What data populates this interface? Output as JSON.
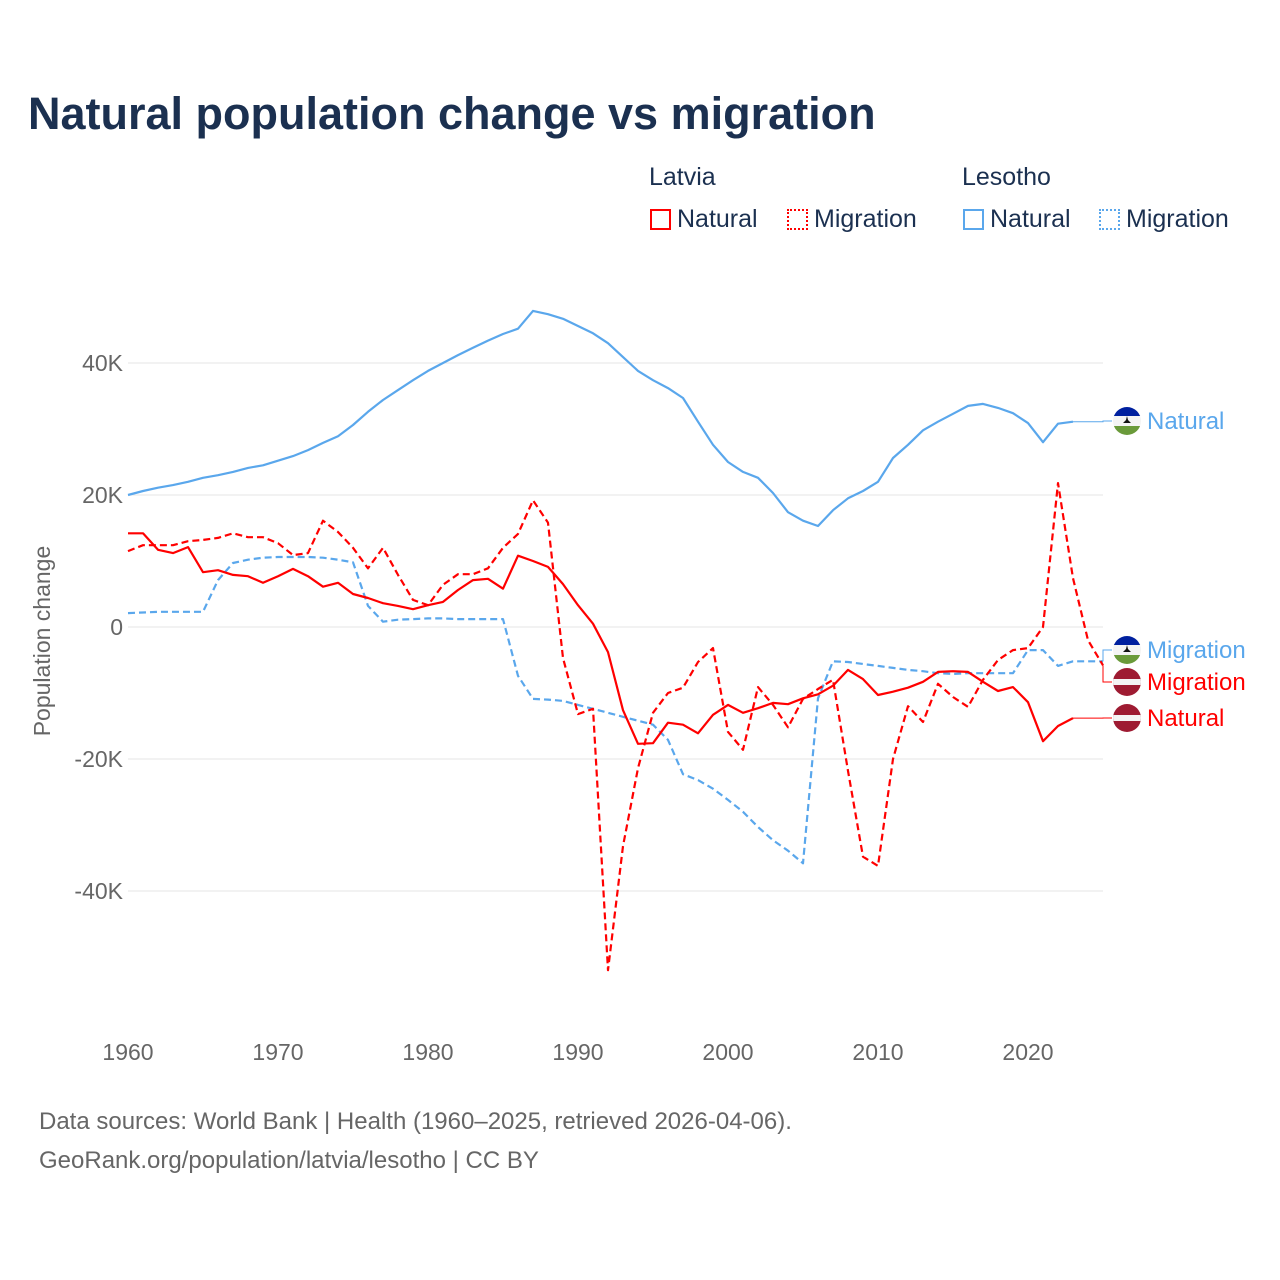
{
  "title": "Natural population change vs migration",
  "legend": {
    "groups": [
      {
        "name": "Latvia",
        "items": [
          {
            "label": "Natural",
            "style": "solid"
          },
          {
            "label": "Migration",
            "style": "dotted"
          }
        ],
        "color": "#ff0000"
      },
      {
        "name": "Lesotho",
        "items": [
          {
            "label": "Natural",
            "style": "solid"
          },
          {
            "label": "Migration",
            "style": "dotted"
          }
        ],
        "color": "#5aa7ec"
      }
    ]
  },
  "footer": {
    "line1": "Data sources: World Bank | Health (1960–2025, retrieved 2026-04-06).",
    "line2": "GeoRank.org/population/latvia/lesotho | CC BY"
  },
  "chart_data": {
    "type": "line",
    "title": "Natural population change vs migration",
    "xlabel": "",
    "ylabel": "Population change",
    "xlim": [
      1960,
      2025
    ],
    "ylim": [
      -55,
      50
    ],
    "x_ticks": [
      1960,
      1970,
      1980,
      1990,
      2000,
      2010,
      2020
    ],
    "x_tick_labels": [
      "1960",
      "1970",
      "1980",
      "1990",
      "2000",
      "2010",
      "2020"
    ],
    "y_ticks": [
      40,
      20,
      0,
      -20,
      -40
    ],
    "y_tick_labels": [
      "40K",
      "20K",
      "0",
      "-20K",
      "-40K"
    ],
    "units": "thousands",
    "grid": true,
    "series": [
      {
        "name": "Lesotho Natural",
        "country": "Lesotho",
        "label": "Natural",
        "color": "#5aa7ec",
        "dash": false,
        "start": 1960,
        "values": [
          20.0,
          20.6,
          21.1,
          21.5,
          22.0,
          22.6,
          23.0,
          23.5,
          24.1,
          24.5,
          25.2,
          25.9,
          26.8,
          27.9,
          28.9,
          30.6,
          32.6,
          34.4,
          35.9,
          37.4,
          38.8,
          40.0,
          41.2,
          42.3,
          43.4,
          44.4,
          45.2,
          47.9,
          47.4,
          46.7,
          45.6,
          44.5,
          43.0,
          40.9,
          38.8,
          37.4,
          36.2,
          34.7,
          31.1,
          27.6,
          25.0,
          23.5,
          22.6,
          20.3,
          17.4,
          16.1,
          15.3,
          17.7,
          19.5,
          20.6,
          22.0,
          25.6,
          27.6,
          29.8,
          31.1,
          32.3,
          33.5,
          33.8,
          33.2,
          32.4,
          30.9,
          28.0,
          30.8,
          31.1
        ]
      },
      {
        "name": "Lesotho Migration",
        "country": "Lesotho",
        "label": "Migration",
        "color": "#5aa7ec",
        "dash": true,
        "start": 1960,
        "values": [
          2.1,
          2.2,
          2.3,
          2.3,
          2.3,
          2.3,
          7.1,
          9.7,
          10.2,
          10.5,
          10.6,
          10.6,
          10.6,
          10.5,
          10.2,
          9.8,
          3.2,
          0.8,
          1.1,
          1.2,
          1.3,
          1.3,
          1.2,
          1.2,
          1.2,
          1.2,
          -7.4,
          -10.9,
          -11.0,
          -11.2,
          -11.8,
          -12.4,
          -13.0,
          -13.6,
          -14.2,
          -14.8,
          -17.1,
          -22.3,
          -23.2,
          -24.5,
          -26.2,
          -28.0,
          -30.3,
          -32.3,
          -33.9,
          -35.8,
          -10.8,
          -5.2,
          -5.3,
          -5.6,
          -5.9,
          -6.2,
          -6.5,
          -6.7,
          -7.0,
          -7.1,
          -7.0,
          -7.0,
          -7.0,
          -7.0,
          -3.5,
          -3.5,
          -5.9,
          -5.2,
          -5.2,
          -5.2
        ]
      },
      {
        "name": "Latvia Natural",
        "country": "Latvia",
        "label": "Natural",
        "color": "#ff0000",
        "dash": false,
        "start": 1960,
        "values": [
          14.2,
          14.2,
          11.7,
          11.2,
          12.1,
          8.3,
          8.6,
          7.9,
          7.7,
          6.7,
          7.7,
          8.8,
          7.7,
          6.1,
          6.7,
          5.0,
          4.4,
          3.6,
          3.2,
          2.7,
          3.3,
          3.8,
          5.6,
          7.1,
          7.3,
          5.8,
          10.8,
          10.0,
          9.1,
          6.5,
          3.3,
          0.5,
          -3.8,
          -12.6,
          -17.7,
          -17.6,
          -14.5,
          -14.8,
          -16.1,
          -13.3,
          -11.8,
          -13.0,
          -12.3,
          -11.5,
          -11.7,
          -10.8,
          -10.2,
          -8.9,
          -6.5,
          -7.9,
          -10.3,
          -9.8,
          -9.2,
          -8.3,
          -6.8,
          -6.7,
          -6.8,
          -8.3,
          -9.7,
          -9.1,
          -11.4,
          -17.3,
          -15.0,
          -13.8
        ]
      },
      {
        "name": "Latvia Migration",
        "country": "Latvia",
        "label": "Migration",
        "color": "#ff0000",
        "dash": true,
        "start": 1960,
        "values": [
          11.5,
          12.4,
          12.4,
          12.4,
          13.0,
          13.2,
          13.5,
          14.2,
          13.6,
          13.6,
          12.7,
          10.9,
          11.2,
          16.1,
          14.4,
          12.0,
          8.9,
          12.0,
          7.9,
          4.1,
          3.3,
          6.4,
          8.0,
          8.0,
          8.9,
          12.0,
          14.1,
          19.2,
          15.8,
          -4.7,
          -13.2,
          -12.4,
          -52.0,
          -33.2,
          -21.4,
          -13.0,
          -10.0,
          -9.2,
          -5.3,
          -3.2,
          -15.9,
          -18.6,
          -9.1,
          -11.8,
          -15.2,
          -10.9,
          -9.4,
          -8.0,
          -21.8,
          -34.8,
          -36.2,
          -20.0,
          -12.0,
          -14.4,
          -8.6,
          -10.6,
          -12.1,
          -8.0,
          -5.0,
          -3.5,
          -3.2,
          0.0,
          21.8,
          7.4,
          -2.0,
          -5.8
        ]
      }
    ],
    "end_labels": [
      {
        "series": "Lesotho Natural",
        "text": "Natural",
        "flag": "lesotho"
      },
      {
        "series": "Lesotho Migration",
        "text": "Migration",
        "flag": "lesotho"
      },
      {
        "series": "Latvia Migration",
        "text": "Migration",
        "flag": "latvia"
      },
      {
        "series": "Latvia Natural",
        "text": "Natural",
        "flag": "latvia"
      }
    ]
  }
}
